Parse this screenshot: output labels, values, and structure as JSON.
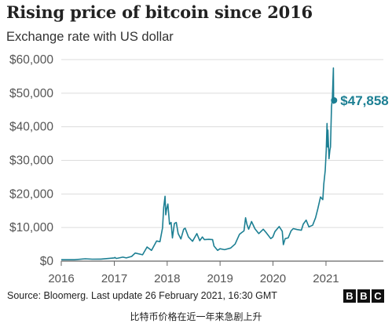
{
  "chart_data": {
    "type": "line",
    "title": "Rising price of bitcoin since 2016",
    "subtitle": "Exchange rate with US dollar",
    "xlabel": "",
    "ylabel": "",
    "x_tick_labels": [
      "2016",
      "2017",
      "2018",
      "2019",
      "2020",
      "2021"
    ],
    "y_tick_labels": [
      "$0",
      "$10,000",
      "$20,000",
      "$30,000",
      "$40,000",
      "$50,000",
      "$60,000"
    ],
    "ylim": [
      0,
      60000
    ],
    "xlim": [
      "2016-01-01",
      "2022-02-01"
    ],
    "grid": true,
    "line_color": "#1c7f93",
    "annotation": {
      "label": "$47,858",
      "date": "2021-02-26",
      "value": 47858
    },
    "series": [
      {
        "points": [
          [
            "2016-01-01",
            430
          ],
          [
            "2016-04-01",
            420
          ],
          [
            "2016-06-15",
            700
          ],
          [
            "2016-08-01",
            580
          ],
          [
            "2016-10-01",
            610
          ],
          [
            "2016-12-31",
            960
          ],
          [
            "2017-01-05",
            1100
          ],
          [
            "2017-01-15",
            800
          ],
          [
            "2017-03-01",
            1200
          ],
          [
            "2017-03-25",
            950
          ],
          [
            "2017-05-01",
            1400
          ],
          [
            "2017-05-25",
            2400
          ],
          [
            "2017-07-15",
            1900
          ],
          [
            "2017-08-15",
            4200
          ],
          [
            "2017-09-15",
            3200
          ],
          [
            "2017-10-20",
            6000
          ],
          [
            "2017-11-12",
            5800
          ],
          [
            "2017-11-30",
            9900
          ],
          [
            "2017-12-08",
            16000
          ],
          [
            "2017-12-17",
            19300
          ],
          [
            "2017-12-22",
            13800
          ],
          [
            "2017-12-28",
            15500
          ],
          [
            "2018-01-06",
            17000
          ],
          [
            "2018-01-17",
            11000
          ],
          [
            "2018-01-28",
            11500
          ],
          [
            "2018-02-06",
            6900
          ],
          [
            "2018-02-20",
            11200
          ],
          [
            "2018-03-05",
            11500
          ],
          [
            "2018-03-18",
            8200
          ],
          [
            "2018-04-06",
            6600
          ],
          [
            "2018-04-25",
            9500
          ],
          [
            "2018-05-05",
            9800
          ],
          [
            "2018-05-28",
            7200
          ],
          [
            "2018-06-25",
            5900
          ],
          [
            "2018-07-25",
            8200
          ],
          [
            "2018-08-14",
            6100
          ],
          [
            "2018-09-01",
            7200
          ],
          [
            "2018-09-15",
            6400
          ],
          [
            "2018-10-15",
            6500
          ],
          [
            "2018-11-10",
            6400
          ],
          [
            "2018-11-20",
            4500
          ],
          [
            "2018-12-15",
            3200
          ],
          [
            "2018-12-31",
            3700
          ],
          [
            "2019-02-01",
            3400
          ],
          [
            "2019-03-15",
            3900
          ],
          [
            "2019-04-15",
            5100
          ],
          [
            "2019-05-15",
            8000
          ],
          [
            "2019-05-30",
            8500
          ],
          [
            "2019-06-15",
            9000
          ],
          [
            "2019-06-26",
            12900
          ],
          [
            "2019-07-05",
            11000
          ],
          [
            "2019-07-17",
            9500
          ],
          [
            "2019-08-06",
            11800
          ],
          [
            "2019-08-30",
            9600
          ],
          [
            "2019-09-25",
            8200
          ],
          [
            "2019-10-26",
            9500
          ],
          [
            "2019-11-15",
            8500
          ],
          [
            "2019-12-17",
            6700
          ],
          [
            "2019-12-31",
            7200
          ],
          [
            "2020-01-15",
            8800
          ],
          [
            "2020-02-13",
            10300
          ],
          [
            "2020-03-05",
            8900
          ],
          [
            "2020-03-13",
            4900
          ],
          [
            "2020-03-25",
            6700
          ],
          [
            "2020-04-15",
            6900
          ],
          [
            "2020-05-05",
            9000
          ],
          [
            "2020-05-20",
            9700
          ],
          [
            "2020-06-15",
            9400
          ],
          [
            "2020-07-15",
            9200
          ],
          [
            "2020-07-28",
            11000
          ],
          [
            "2020-08-17",
            12200
          ],
          [
            "2020-09-05",
            10200
          ],
          [
            "2020-10-01",
            10700
          ],
          [
            "2020-10-21",
            12900
          ],
          [
            "2020-11-05",
            15500
          ],
          [
            "2020-11-24",
            19100
          ],
          [
            "2020-12-10",
            18300
          ],
          [
            "2020-12-17",
            23000
          ],
          [
            "2020-12-27",
            27000
          ],
          [
            "2021-01-03",
            33000
          ],
          [
            "2021-01-08",
            41000
          ],
          [
            "2021-01-12",
            34000
          ],
          [
            "2021-01-14",
            39000
          ],
          [
            "2021-01-22",
            30500
          ],
          [
            "2021-01-28",
            33000
          ],
          [
            "2021-02-01",
            34000
          ],
          [
            "2021-02-08",
            46000
          ],
          [
            "2021-02-14",
            48500
          ],
          [
            "2021-02-21",
            57500
          ],
          [
            "2021-02-23",
            47000
          ],
          [
            "2021-02-26",
            47858
          ]
        ]
      }
    ]
  },
  "footer": {
    "source": "Source: Bloomerg. Last update 26 February 2021, 16:30 GMT",
    "logo_letters": [
      "B",
      "B",
      "C"
    ],
    "caption": "比特币价格在近一年来急剧上升"
  }
}
